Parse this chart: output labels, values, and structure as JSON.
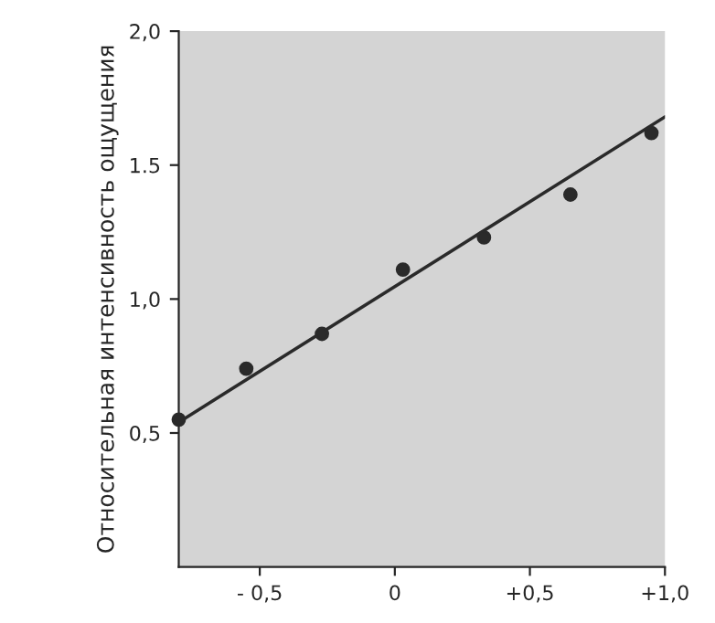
{
  "chart_data": {
    "type": "scatter",
    "ylabel": "Относительная интенсивность ощущения",
    "xlim": [
      -0.8,
      1.0
    ],
    "ylim": [
      0,
      2.0
    ],
    "xticks": [
      {
        "value": -0.5,
        "label": "- 0,5"
      },
      {
        "value": 0,
        "label": "0"
      },
      {
        "value": 0.5,
        "label": "+0,5"
      },
      {
        "value": 1.0,
        "label": "+1,0"
      }
    ],
    "yticks": [
      {
        "value": 0.5,
        "label": "0,5"
      },
      {
        "value": 1.0,
        "label": "1,0"
      },
      {
        "value": 1.5,
        "label": "1.5"
      },
      {
        "value": 2.0,
        "label": "2,0"
      }
    ],
    "grid": false,
    "series": [
      {
        "marker": "circle",
        "color": "#2a2a2a",
        "x": [
          -0.8,
          -0.55,
          -0.27,
          0.03,
          0.33,
          0.65,
          0.95
        ],
        "values": [
          0.55,
          0.74,
          0.87,
          1.11,
          1.23,
          1.39,
          1.62
        ]
      },
      {
        "type": "line",
        "color": "#2a2a2a",
        "x": [
          -0.8,
          1.0
        ],
        "values": [
          0.54,
          1.68
        ]
      }
    ]
  }
}
